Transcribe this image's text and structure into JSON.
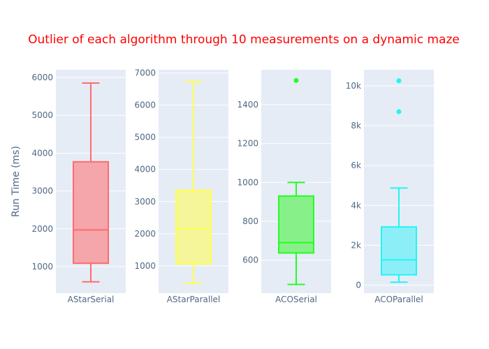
{
  "chart_data": {
    "type": "box",
    "title": "Outlier of each algorithm through 10 measurements on a dynamic maze",
    "ylabel": "Run Time (ms)",
    "colors": {
      "title": "#ff0000",
      "panel_background": "#e5ecf6",
      "tick_text": "#506784"
    },
    "panels": [
      {
        "category": "AStarSerial",
        "color": "#ff6b6b",
        "fill": "#f4a6aa",
        "ylim": [
          300,
          6200
        ],
        "ticks": [
          1000,
          2000,
          3000,
          4000,
          5000,
          6000
        ],
        "tick_labels": [
          "1000",
          "2000",
          "3000",
          "4000",
          "5000",
          "6000"
        ],
        "min": 600,
        "q1": 1090,
        "median": 1970,
        "q3": 3770,
        "max": 5850,
        "outliers": []
      },
      {
        "category": "AStarParallel",
        "color": "#ffff4d",
        "fill": "#f5f59a",
        "ylim": [
          150,
          7100
        ],
        "ticks": [
          1000,
          2000,
          3000,
          4000,
          5000,
          6000,
          7000
        ],
        "tick_labels": [
          "1000",
          "2000",
          "3000",
          "4000",
          "5000",
          "6000",
          "7000"
        ],
        "min": 460,
        "q1": 1060,
        "median": 2140,
        "q3": 3350,
        "max": 6730,
        "outliers": []
      },
      {
        "category": "ACOSerial",
        "color": "#22ff22",
        "fill": "#88f088",
        "ylim": [
          430,
          1580
        ],
        "ticks": [
          600,
          800,
          1000,
          1200,
          1400
        ],
        "tick_labels": [
          "600",
          "800",
          "1000",
          "1200",
          "1400"
        ],
        "min": 475,
        "q1": 637,
        "median": 690,
        "q3": 930,
        "max": 1000,
        "outliers": [
          1525
        ]
      },
      {
        "category": "ACOParallel",
        "color": "#22f5f5",
        "fill": "#8ceff8",
        "ylim": [
          -400,
          10800
        ],
        "ticks": [
          0,
          2000,
          4000,
          6000,
          8000,
          10000
        ],
        "tick_labels": [
          "0",
          "2k",
          "4k",
          "6k",
          "8k",
          "10k"
        ],
        "min": 150,
        "q1": 520,
        "median": 1270,
        "q3": 2920,
        "max": 4870,
        "outliers": [
          8700,
          10250
        ]
      }
    ]
  }
}
